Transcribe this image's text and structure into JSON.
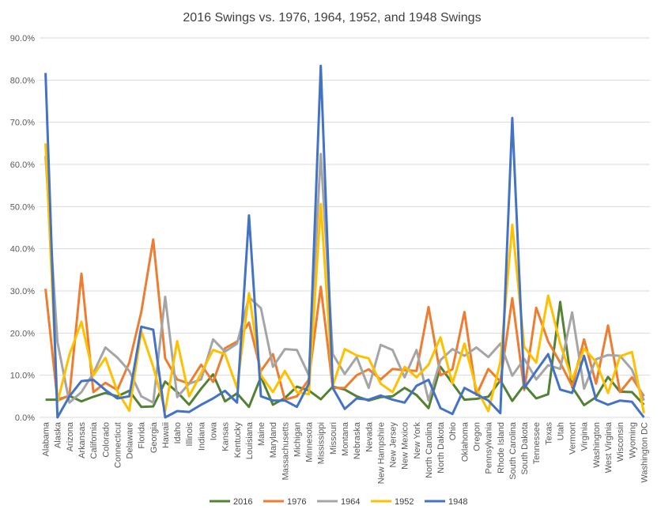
{
  "chart_data": {
    "type": "line",
    "title": "2016 Swings vs. 1976, 1964, 1952, and 1948 Swings",
    "xlabel": "",
    "ylabel": "",
    "ylim": [
      0,
      90
    ],
    "y_tick_labels": [
      "0.0%",
      "10.0%",
      "20.0%",
      "30.0%",
      "40.0%",
      "50.0%",
      "60.0%",
      "70.0%",
      "80.0%",
      "90.0%"
    ],
    "grid": true,
    "legend_position": "bottom",
    "categories": [
      "Alabama",
      "Alaska",
      "Arizona",
      "Arkansas",
      "California",
      "Colorado",
      "Connecticut",
      "Delaware",
      "Florida",
      "Georgia",
      "Hawaii",
      "Idaho",
      "Illinois",
      "Indiana",
      "Iowa",
      "Kansas",
      "Kentucky",
      "Louisiana",
      "Maine",
      "Maryland",
      "Massachusetts",
      "Michigan",
      "Minnesota",
      "Mississippi",
      "Missouri",
      "Montana",
      "Nebraska",
      "Nevada",
      "New Hampshire",
      "New Jersey",
      "New Mexico",
      "New York",
      "North Carolina",
      "North Dakota",
      "Ohio",
      "Oklahoma",
      "Oregon",
      "Pennsylvania",
      "Rhode Island",
      "South Carolina",
      "South Dakota",
      "Tennessee",
      "Texas",
      "Utah",
      "Vermont",
      "Virginia",
      "Washington",
      "West Virginia",
      "Wisconsin",
      "Wyoming",
      "Washington DC"
    ],
    "series": [
      {
        "name": "2016",
        "color": "#548235",
        "values": [
          4.2,
          4.2,
          5.1,
          3.8,
          4.9,
          5.8,
          5.0,
          6.3,
          2.5,
          2.6,
          8.5,
          6.0,
          3.0,
          6.8,
          10.2,
          3.8,
          5.7,
          2.5,
          9.6,
          3.0,
          4.6,
          7.3,
          6.4,
          4.3,
          7.3,
          6.6,
          5.0,
          4.0,
          4.8,
          5.0,
          7.0,
          5.3,
          2.2,
          12.0,
          8.1,
          4.2,
          4.4,
          4.9,
          8.8,
          3.9,
          7.7,
          4.5,
          5.5,
          27.4,
          7.2,
          2.9,
          4.8,
          9.6,
          6.1,
          6.0,
          3.0
        ]
      },
      {
        "name": "1976",
        "color": "#ED7D31",
        "values": [
          30.5,
          4.0,
          5.2,
          34.1,
          6.0,
          8.2,
          6.5,
          13.0,
          25.0,
          42.2,
          14.0,
          9.0,
          8.0,
          12.5,
          8.4,
          16.4,
          18.0,
          22.5,
          11.0,
          15.0,
          4.2,
          5.0,
          9.0,
          31.0,
          7.0,
          7.0,
          10.0,
          11.4,
          9.0,
          11.5,
          11.2,
          11.0,
          26.2,
          10.0,
          11.4,
          25.0,
          5.3,
          11.5,
          8.5,
          28.3,
          6.5,
          26.0,
          18.0,
          13.0,
          7.4,
          18.5,
          8.0,
          21.8,
          6.0,
          9.5,
          5.0
        ]
      },
      {
        "name": "1964",
        "color": "#A5A5A5",
        "values": [
          62.0,
          17.8,
          3.5,
          6.0,
          10.5,
          16.6,
          14.2,
          11.0,
          5.0,
          3.5,
          28.6,
          4.8,
          8.0,
          9.0,
          18.5,
          15.6,
          17.5,
          28.5,
          25.9,
          12.0,
          16.2,
          16.0,
          10.0,
          62.5,
          15.0,
          10.3,
          14.3,
          7.0,
          17.2,
          16.0,
          9.5,
          16.0,
          4.0,
          13.6,
          16.2,
          14.6,
          16.6,
          14.3,
          17.5,
          9.9,
          13.9,
          9.0,
          12.4,
          11.5,
          24.9,
          6.8,
          13.8,
          14.8,
          14.6,
          11.3,
          4.0
        ]
      },
      {
        "name": "1952",
        "color": "#FFC000",
        "values": [
          65.0,
          3.6,
          14.9,
          22.7,
          10.0,
          14.1,
          6.2,
          1.6,
          20.5,
          12.0,
          1.5,
          18.1,
          5.0,
          10.5,
          16.0,
          15.0,
          7.0,
          29.5,
          10.0,
          6.0,
          11.0,
          6.0,
          5.5,
          50.6,
          7.5,
          16.2,
          14.7,
          14.0,
          8.0,
          6.0,
          12.0,
          9.5,
          12.5,
          19.0,
          8.0,
          17.5,
          6.8,
          1.5,
          13.1,
          45.7,
          16.7,
          13.0,
          28.9,
          17.5,
          9.0,
          16.3,
          13.2,
          5.8,
          14.5,
          15.5,
          1.0
        ]
      },
      {
        "name": "1948",
        "color": "#4472C4",
        "values": [
          81.7,
          0.0,
          5.0,
          8.6,
          8.9,
          6.5,
          4.5,
          5.0,
          21.5,
          20.8,
          0.0,
          1.5,
          1.3,
          3.0,
          4.5,
          6.3,
          3.5,
          47.9,
          5.0,
          4.0,
          4.0,
          2.5,
          8.0,
          83.4,
          7.0,
          2.0,
          4.5,
          4.2,
          5.2,
          4.2,
          3.5,
          7.5,
          8.9,
          2.2,
          0.8,
          7.0,
          5.5,
          4.0,
          1.0,
          71.0,
          7.0,
          11.0,
          15.0,
          6.6,
          5.8,
          14.6,
          4.2,
          3.0,
          4.0,
          3.7,
          0.0
        ]
      }
    ]
  }
}
